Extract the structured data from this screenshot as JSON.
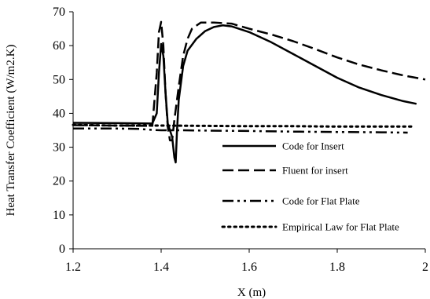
{
  "chart_data": {
    "type": "line",
    "xlabel": "X (m)",
    "ylabel": "Heat Transfer Coefficient (W/m2.K)",
    "xlim": [
      1.2,
      2.0
    ],
    "ylim": [
      0,
      70
    ],
    "x_ticks": [
      "1.2",
      "1.4",
      "1.6",
      "1.8",
      "2"
    ],
    "y_ticks": [
      "0",
      "10",
      "20",
      "30",
      "40",
      "50",
      "60",
      "70"
    ],
    "grid": false,
    "legend_position": "bottom-right",
    "series": [
      {
        "name": "Code for Insert",
        "style": "solid",
        "color": "#000000",
        "points": [
          [
            1.2,
            37.2
          ],
          [
            1.3,
            37.1
          ],
          [
            1.38,
            37.0
          ],
          [
            1.39,
            40
          ],
          [
            1.395,
            52
          ],
          [
            1.4,
            60.5
          ],
          [
            1.405,
            57
          ],
          [
            1.41,
            46
          ],
          [
            1.415,
            37
          ],
          [
            1.42,
            35
          ],
          [
            1.425,
            33
          ],
          [
            1.43,
            27
          ],
          [
            1.433,
            25.5
          ],
          [
            1.436,
            35
          ],
          [
            1.44,
            44
          ],
          [
            1.45,
            54
          ],
          [
            1.46,
            58.5
          ],
          [
            1.48,
            62
          ],
          [
            1.5,
            64.3
          ],
          [
            1.52,
            65.5
          ],
          [
            1.54,
            66
          ],
          [
            1.56,
            65.7
          ],
          [
            1.6,
            64
          ],
          [
            1.65,
            61
          ],
          [
            1.7,
            57.5
          ],
          [
            1.75,
            54
          ],
          [
            1.8,
            50.5
          ],
          [
            1.85,
            47.6
          ],
          [
            1.9,
            45.4
          ],
          [
            1.95,
            43.6
          ],
          [
            1.98,
            42.8
          ]
        ]
      },
      {
        "name": "Fluent for insert",
        "style": "dashed",
        "color": "#000000",
        "points": [
          [
            1.2,
            36.5
          ],
          [
            1.38,
            36.3
          ],
          [
            1.39,
            52
          ],
          [
            1.395,
            64
          ],
          [
            1.4,
            67
          ],
          [
            1.405,
            60
          ],
          [
            1.41,
            46
          ],
          [
            1.415,
            36
          ],
          [
            1.42,
            32
          ],
          [
            1.425,
            32
          ],
          [
            1.43,
            38
          ],
          [
            1.44,
            48
          ],
          [
            1.45,
            57
          ],
          [
            1.46,
            62
          ],
          [
            1.47,
            65
          ],
          [
            1.49,
            66.8
          ],
          [
            1.52,
            66.8
          ],
          [
            1.56,
            66.5
          ],
          [
            1.6,
            65
          ],
          [
            1.65,
            63.3
          ],
          [
            1.7,
            61.3
          ],
          [
            1.75,
            59
          ],
          [
            1.8,
            56.5
          ],
          [
            1.85,
            54.4
          ],
          [
            1.9,
            52.7
          ],
          [
            1.95,
            51.2
          ],
          [
            2.0,
            50
          ]
        ]
      },
      {
        "name": "Code for Flat Plate",
        "style": "dash-dot-dot",
        "color": "#000000",
        "points": [
          [
            1.2,
            35.5
          ],
          [
            1.3,
            35.5
          ],
          [
            1.35,
            35.4
          ],
          [
            1.38,
            35.1
          ],
          [
            1.4,
            35.0
          ],
          [
            1.45,
            35.0
          ],
          [
            1.5,
            34.9
          ],
          [
            1.6,
            34.8
          ],
          [
            1.7,
            34.6
          ],
          [
            1.8,
            34.5
          ],
          [
            1.9,
            34.4
          ],
          [
            1.96,
            34.3
          ]
        ]
      },
      {
        "name": "Empirical Law for Flat Plate",
        "style": "dotted",
        "color": "#000000",
        "points": [
          [
            1.2,
            36.6
          ],
          [
            1.3,
            36.4
          ],
          [
            1.4,
            36.4
          ],
          [
            1.5,
            36.3
          ],
          [
            1.6,
            36.2
          ],
          [
            1.7,
            36.2
          ],
          [
            1.8,
            36.1
          ],
          [
            1.9,
            36.1
          ],
          [
            1.97,
            36.1
          ]
        ]
      }
    ]
  }
}
